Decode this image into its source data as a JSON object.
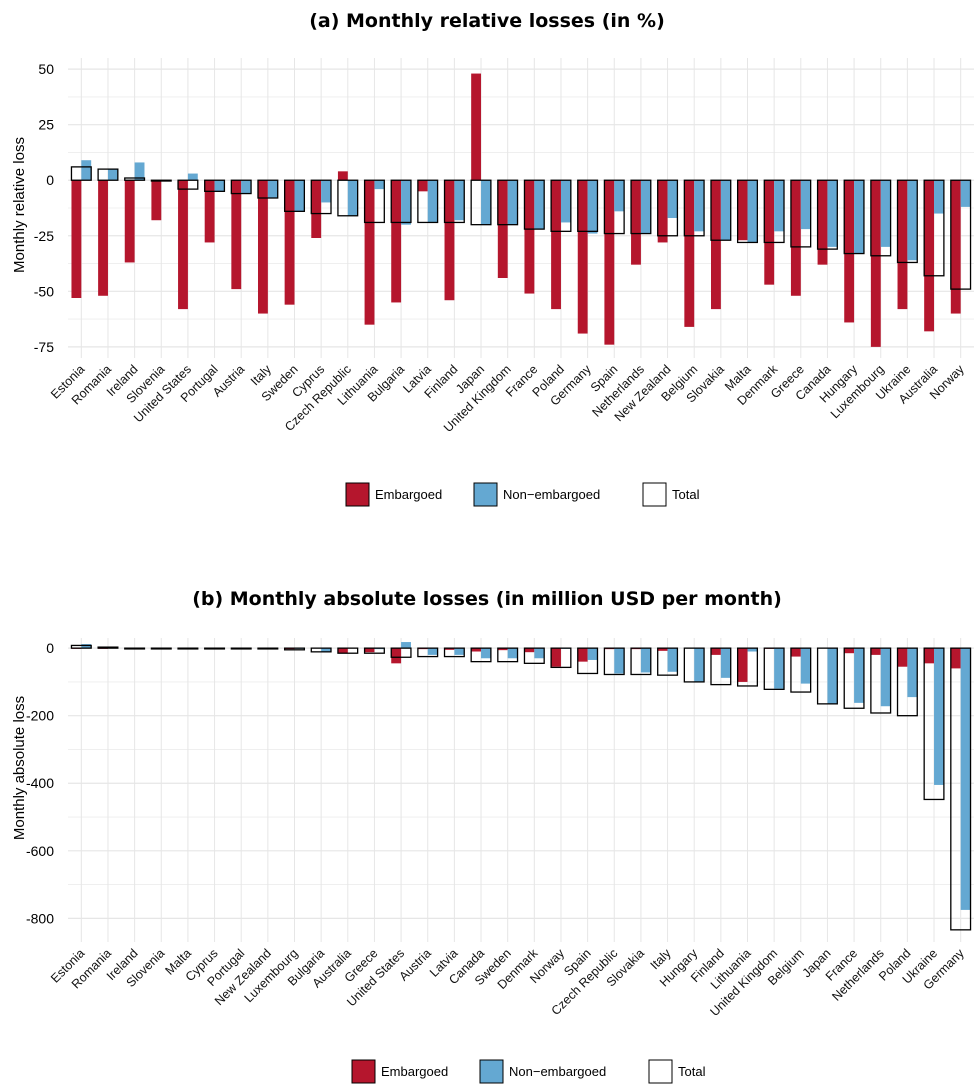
{
  "colors": {
    "embargoed": "#b5162d",
    "non_embargoed": "#64a8d2",
    "total_fill": "none",
    "total_stroke": "#000000",
    "grid": "#e6e6e6"
  },
  "legend": {
    "embargoed": "Embargoed",
    "non_embargoed": "Non−embargoed",
    "total": "Total"
  },
  "chart_data": [
    {
      "type": "bar",
      "title": "(a) Monthly relative losses (in %)",
      "ylabel": "Monthly relative loss",
      "xlabel": "",
      "ylim": [
        -80,
        55
      ],
      "yticks": [
        50,
        25,
        0,
        -25,
        -50,
        -75
      ],
      "grid": true,
      "legend_position": "bottom",
      "categories": [
        "Estonia",
        "Romania",
        "Ireland",
        "Slovenia",
        "United States",
        "Portugal",
        "Austria",
        "Italy",
        "Sweden",
        "Cyprus",
        "Czech Republic",
        "Lithuania",
        "Bulgaria",
        "Latvia",
        "Finland",
        "Japan",
        "United Kingdom",
        "France",
        "Poland",
        "Germany",
        "Spain",
        "Netherlands",
        "New Zealand",
        "Belgium",
        "Slovakia",
        "Malta",
        "Denmark",
        "Greece",
        "Canada",
        "Hungary",
        "Luxembourg",
        "Ukraine",
        "Australia",
        "Norway"
      ],
      "series": [
        {
          "name": "Embargoed",
          "values": [
            -53,
            -52,
            -37,
            -18,
            -58,
            -28,
            -49,
            -60,
            -56,
            -26,
            4,
            -65,
            -55,
            -5,
            -54,
            48,
            -44,
            -51,
            -58,
            -69,
            -74,
            -38,
            -28,
            -66,
            -58,
            -27,
            -47,
            -52,
            -38,
            -64,
            -75,
            -58,
            -68,
            -60
          ]
        },
        {
          "name": "Non-embargoed",
          "values": [
            9,
            5,
            8,
            0,
            3,
            -5,
            -6,
            -8,
            -14,
            -10,
            -16,
            -4,
            -20,
            -19,
            -18,
            -20,
            -20,
            -22,
            -19,
            -24,
            -14,
            -24,
            -17,
            -23,
            -27,
            -28,
            -23,
            -22,
            -30,
            -33,
            -30,
            -36,
            -15,
            -12
          ]
        },
        {
          "name": "Total",
          "values": [
            6,
            5,
            1,
            0,
            -4,
            -5,
            -6,
            -8,
            -14,
            -15,
            -16,
            -19,
            -19,
            -19,
            -19,
            -20,
            -20,
            -22,
            -23,
            -23,
            -24,
            -24,
            -25,
            -25,
            -27,
            -28,
            -28,
            -30,
            -31,
            -33,
            -34,
            -37,
            -43,
            -49
          ]
        }
      ]
    },
    {
      "type": "bar",
      "title": "(b) Monthly absolute losses (in million USD per month)",
      "ylabel": "Monthly absolute loss",
      "xlabel": "",
      "ylim": [
        -870,
        30
      ],
      "yticks": [
        0,
        -200,
        -400,
        -600,
        -800
      ],
      "grid": true,
      "legend_position": "bottom",
      "categories": [
        "Estonia",
        "Romania",
        "Ireland",
        "Slovenia",
        "Malta",
        "Cyprus",
        "Portugal",
        "New Zealand",
        "Luxembourg",
        "Bulgaria",
        "Australia",
        "Greece",
        "United States",
        "Austria",
        "Latvia",
        "Canada",
        "Sweden",
        "Denmark",
        "Norway",
        "Spain",
        "Czech Republic",
        "Slovakia",
        "Italy",
        "Hungary",
        "Finland",
        "Lithuania",
        "United Kingdom",
        "Belgium",
        "Japan",
        "France",
        "Netherlands",
        "Poland",
        "Ukraine",
        "Germany"
      ],
      "series": [
        {
          "name": "Embargoed",
          "values": [
            -2,
            -2,
            -1,
            0,
            0,
            0,
            0,
            -2,
            -3,
            -1,
            -15,
            -12,
            -45,
            -3,
            -5,
            -10,
            -6,
            -12,
            -55,
            -40,
            -3,
            -3,
            -8,
            0,
            -20,
            -100,
            -2,
            -25,
            0,
            -15,
            -20,
            -55,
            -45,
            -60
          ]
        },
        {
          "name": "Non-embargoed",
          "values": [
            12,
            2,
            1,
            0,
            0,
            0,
            -1,
            0,
            -2,
            -10,
            0,
            -3,
            18,
            -20,
            -20,
            -30,
            -30,
            -30,
            -2,
            -35,
            -75,
            -72,
            -70,
            -100,
            -88,
            -10,
            -120,
            -105,
            -165,
            -162,
            -172,
            -145,
            -405,
            -775
          ]
        },
        {
          "name": "Total",
          "values": [
            8,
            3,
            -1,
            -1,
            -1,
            -1,
            -1,
            -2,
            -5,
            -11,
            -15,
            -15,
            -27,
            -25,
            -25,
            -40,
            -40,
            -45,
            -57,
            -75,
            -78,
            -78,
            -80,
            -100,
            -108,
            -112,
            -122,
            -130,
            -165,
            -178,
            -192,
            -200,
            -448,
            -834
          ]
        }
      ]
    }
  ]
}
